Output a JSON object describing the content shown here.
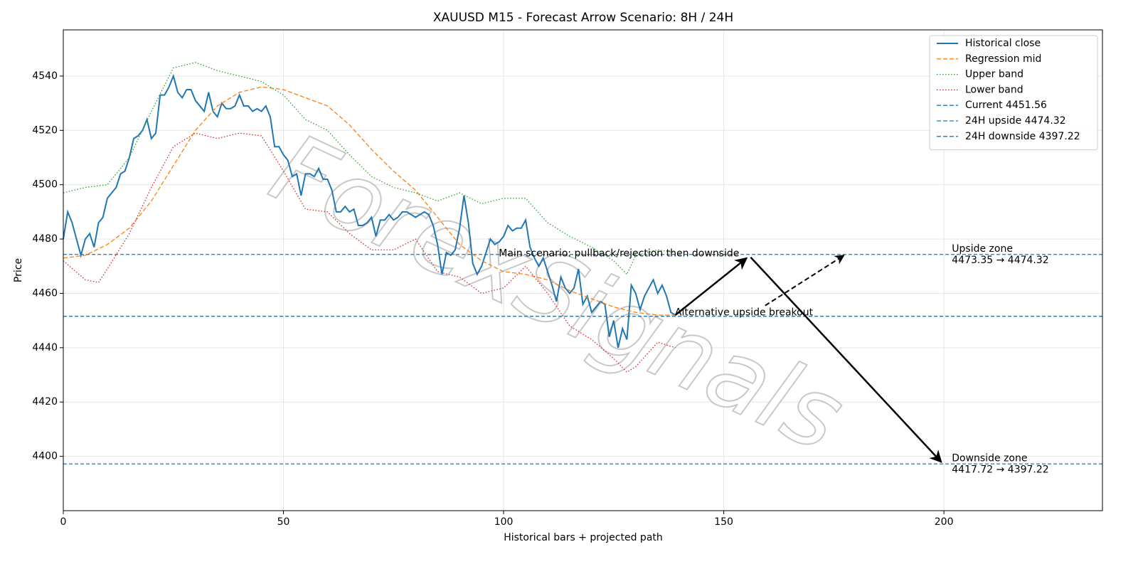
{
  "chart_data": {
    "type": "line",
    "title": "XAUUSD M15 - Forecast Arrow Scenario: 8H / 24H",
    "xlabel": "Historical bars + projected path",
    "ylabel": "Price",
    "watermark": "ForexSignals",
    "xlim": [
      0,
      236
    ],
    "ylim": [
      4380,
      4557
    ],
    "xticks": [
      0,
      50,
      100,
      150,
      200
    ],
    "yticks": [
      4400,
      4420,
      4440,
      4460,
      4480,
      4500,
      4520,
      4540
    ],
    "grid": true,
    "legend": "upper right",
    "series": [
      {
        "name": "Historical close",
        "color": "#1f77b4",
        "style": "solid",
        "x": [
          0,
          1,
          2,
          3,
          4,
          5,
          6,
          7,
          8,
          9,
          10,
          11,
          12,
          13,
          14,
          15,
          16,
          17,
          18,
          19,
          20,
          21,
          22,
          23,
          24,
          25,
          26,
          27,
          28,
          29,
          30,
          31,
          32,
          33,
          34,
          35,
          36,
          37,
          38,
          39,
          40,
          41,
          42,
          43,
          44,
          45,
          46,
          47,
          48,
          49,
          50,
          51,
          52,
          53,
          54,
          55,
          56,
          57,
          58,
          59,
          60,
          61,
          62,
          63,
          64,
          65,
          66,
          67,
          68,
          69,
          70,
          71,
          72,
          73,
          74,
          75,
          76,
          77,
          78,
          79,
          80,
          81,
          82,
          83,
          84,
          85,
          86,
          87,
          88,
          89,
          90,
          91,
          92,
          93,
          94,
          95,
          96,
          97,
          98,
          99,
          100,
          101,
          102,
          103,
          104,
          105,
          106,
          107,
          108,
          109,
          110,
          111,
          112,
          113,
          114,
          115,
          116,
          117,
          118,
          119,
          120,
          121,
          122,
          123,
          124,
          125,
          126,
          127,
          128,
          129,
          130,
          131,
          132,
          133,
          134,
          135,
          136,
          137,
          138,
          139
        ],
        "values": [
          4480,
          4490,
          4486,
          4480,
          4474,
          4480,
          4482,
          4477,
          4486,
          4488,
          4495,
          4497,
          4499,
          4504,
          4505,
          4510,
          4517,
          4518,
          4520,
          4524,
          4517,
          4519,
          4533,
          4533,
          4536,
          4540,
          4534,
          4532,
          4535,
          4535,
          4531,
          4529,
          4527,
          4534,
          4527,
          4525,
          4530,
          4528,
          4528,
          4529,
          4533,
          4529,
          4529,
          4527,
          4528,
          4527,
          4529,
          4525,
          4514,
          4514,
          4511,
          4509,
          4503,
          4504,
          4496,
          4504,
          4504,
          4503,
          4506,
          4502,
          4502,
          4498,
          4490,
          4490,
          4492,
          4490,
          4491,
          4485,
          4485,
          4486,
          4488,
          4481,
          4487,
          4487,
          4489,
          4487,
          4488,
          4490,
          4490,
          4489,
          4488,
          4489,
          4490,
          4489,
          4485,
          4478,
          4467,
          4475,
          4474,
          4476,
          4484,
          4496,
          4486,
          4471,
          4467,
          4470,
          4475,
          4480,
          4478,
          4479,
          4481,
          4485,
          4483,
          4484,
          4484,
          4487,
          4477,
          4473,
          4470,
          4473,
          4468,
          4463,
          4457,
          4466,
          4462,
          4460,
          4462,
          4469,
          4456,
          4459,
          4453,
          4455,
          4457,
          4456,
          4444,
          4450,
          4440,
          4447,
          4443,
          4463,
          4460,
          4454,
          4459,
          4462,
          4465,
          4460,
          4463,
          4459,
          4453,
          4452
        ]
      },
      {
        "name": "Regression mid",
        "color": "#ff7f0e",
        "style": "dashed",
        "x": [
          0,
          5,
          10,
          15,
          20,
          25,
          30,
          35,
          40,
          45,
          50,
          55,
          60,
          65,
          70,
          75,
          80,
          85,
          90,
          95,
          100,
          105,
          110,
          115,
          120,
          125,
          130,
          135,
          139
        ],
        "values": [
          4473,
          4474,
          4478,
          4484,
          4494,
          4507,
          4520,
          4529,
          4534,
          4536,
          4535,
          4532,
          4529,
          4522,
          4513,
          4505,
          4498,
          4488,
          4478,
          4472,
          4468,
          4467,
          4465,
          4461,
          4458,
          4455,
          4453,
          4452,
          4452
        ]
      },
      {
        "name": "Upper band",
        "color": "#2ca02c",
        "style": "dotted",
        "x": [
          0,
          5,
          10,
          15,
          20,
          25,
          30,
          35,
          40,
          45,
          50,
          55,
          60,
          65,
          70,
          75,
          80,
          85,
          90,
          95,
          100,
          105,
          110,
          115,
          120,
          125,
          128,
          130,
          135,
          139
        ],
        "values": [
          4497,
          4499,
          4500,
          4510,
          4527,
          4543,
          4545,
          4542,
          4540,
          4538,
          4533,
          4524,
          4520,
          4511,
          4503,
          4499,
          4497,
          4494,
          4497,
          4493,
          4495,
          4495,
          4486,
          4481,
          4477,
          4472,
          4467,
          4474,
          4476,
          4475
        ]
      },
      {
        "name": "Lower band",
        "color": "#d62728",
        "style": "dotted",
        "x": [
          0,
          5,
          8,
          10,
          15,
          20,
          25,
          30,
          35,
          40,
          45,
          50,
          55,
          60,
          65,
          70,
          75,
          80,
          85,
          90,
          95,
          100,
          105,
          110,
          115,
          120,
          125,
          128,
          130,
          135,
          139
        ],
        "values": [
          4472,
          4465,
          4464,
          4469,
          4482,
          4499,
          4514,
          4519,
          4517,
          4519,
          4518,
          4505,
          4491,
          4490,
          4482,
          4476,
          4476,
          4480,
          4468,
          4466,
          4460,
          4462,
          4470,
          4460,
          4448,
          4443,
          4436,
          4431,
          4433,
          4442,
          4440
        ]
      }
    ],
    "hlines": [
      {
        "name": "Current 4451.56",
        "value": 4451.56,
        "color": "#1f77b4"
      },
      {
        "name": "24H upside 4474.32",
        "value": 4474.32,
        "color": "#1f77b4"
      },
      {
        "name": "24H downside 4397.22",
        "value": 4397.22,
        "color": "#1f77b4"
      }
    ],
    "arrows": [
      {
        "x1": 139,
        "y1": 4452,
        "x2": 155.2,
        "y2": 4473,
        "style": "solid"
      },
      {
        "x1": 156.1,
        "y1": 4473.3,
        "x2": 199.4,
        "y2": 4397.9,
        "style": "solid"
      },
      {
        "x1": 159.4,
        "y1": 4455.5,
        "x2": 177.3,
        "y2": 4474,
        "style": "dashed"
      }
    ],
    "annotations": [
      {
        "text": "Main scenario: pullback/rejection then downside",
        "x": 98.9,
        "y": 4474.6
      },
      {
        "text": "Alternative upside breakout",
        "x": 138.9,
        "y": 4452.9
      },
      {
        "text": "Upside zone",
        "x": 201.8,
        "y": 4476.4
      },
      {
        "text": "4473.35 → 4474.32",
        "x": 201.8,
        "y": 4472.2
      },
      {
        "text": "Downside zone",
        "x": 201.8,
        "y": 4399.2
      },
      {
        "text": "4417.72 → 4397.22",
        "x": 201.8,
        "y": 4395
      }
    ]
  }
}
